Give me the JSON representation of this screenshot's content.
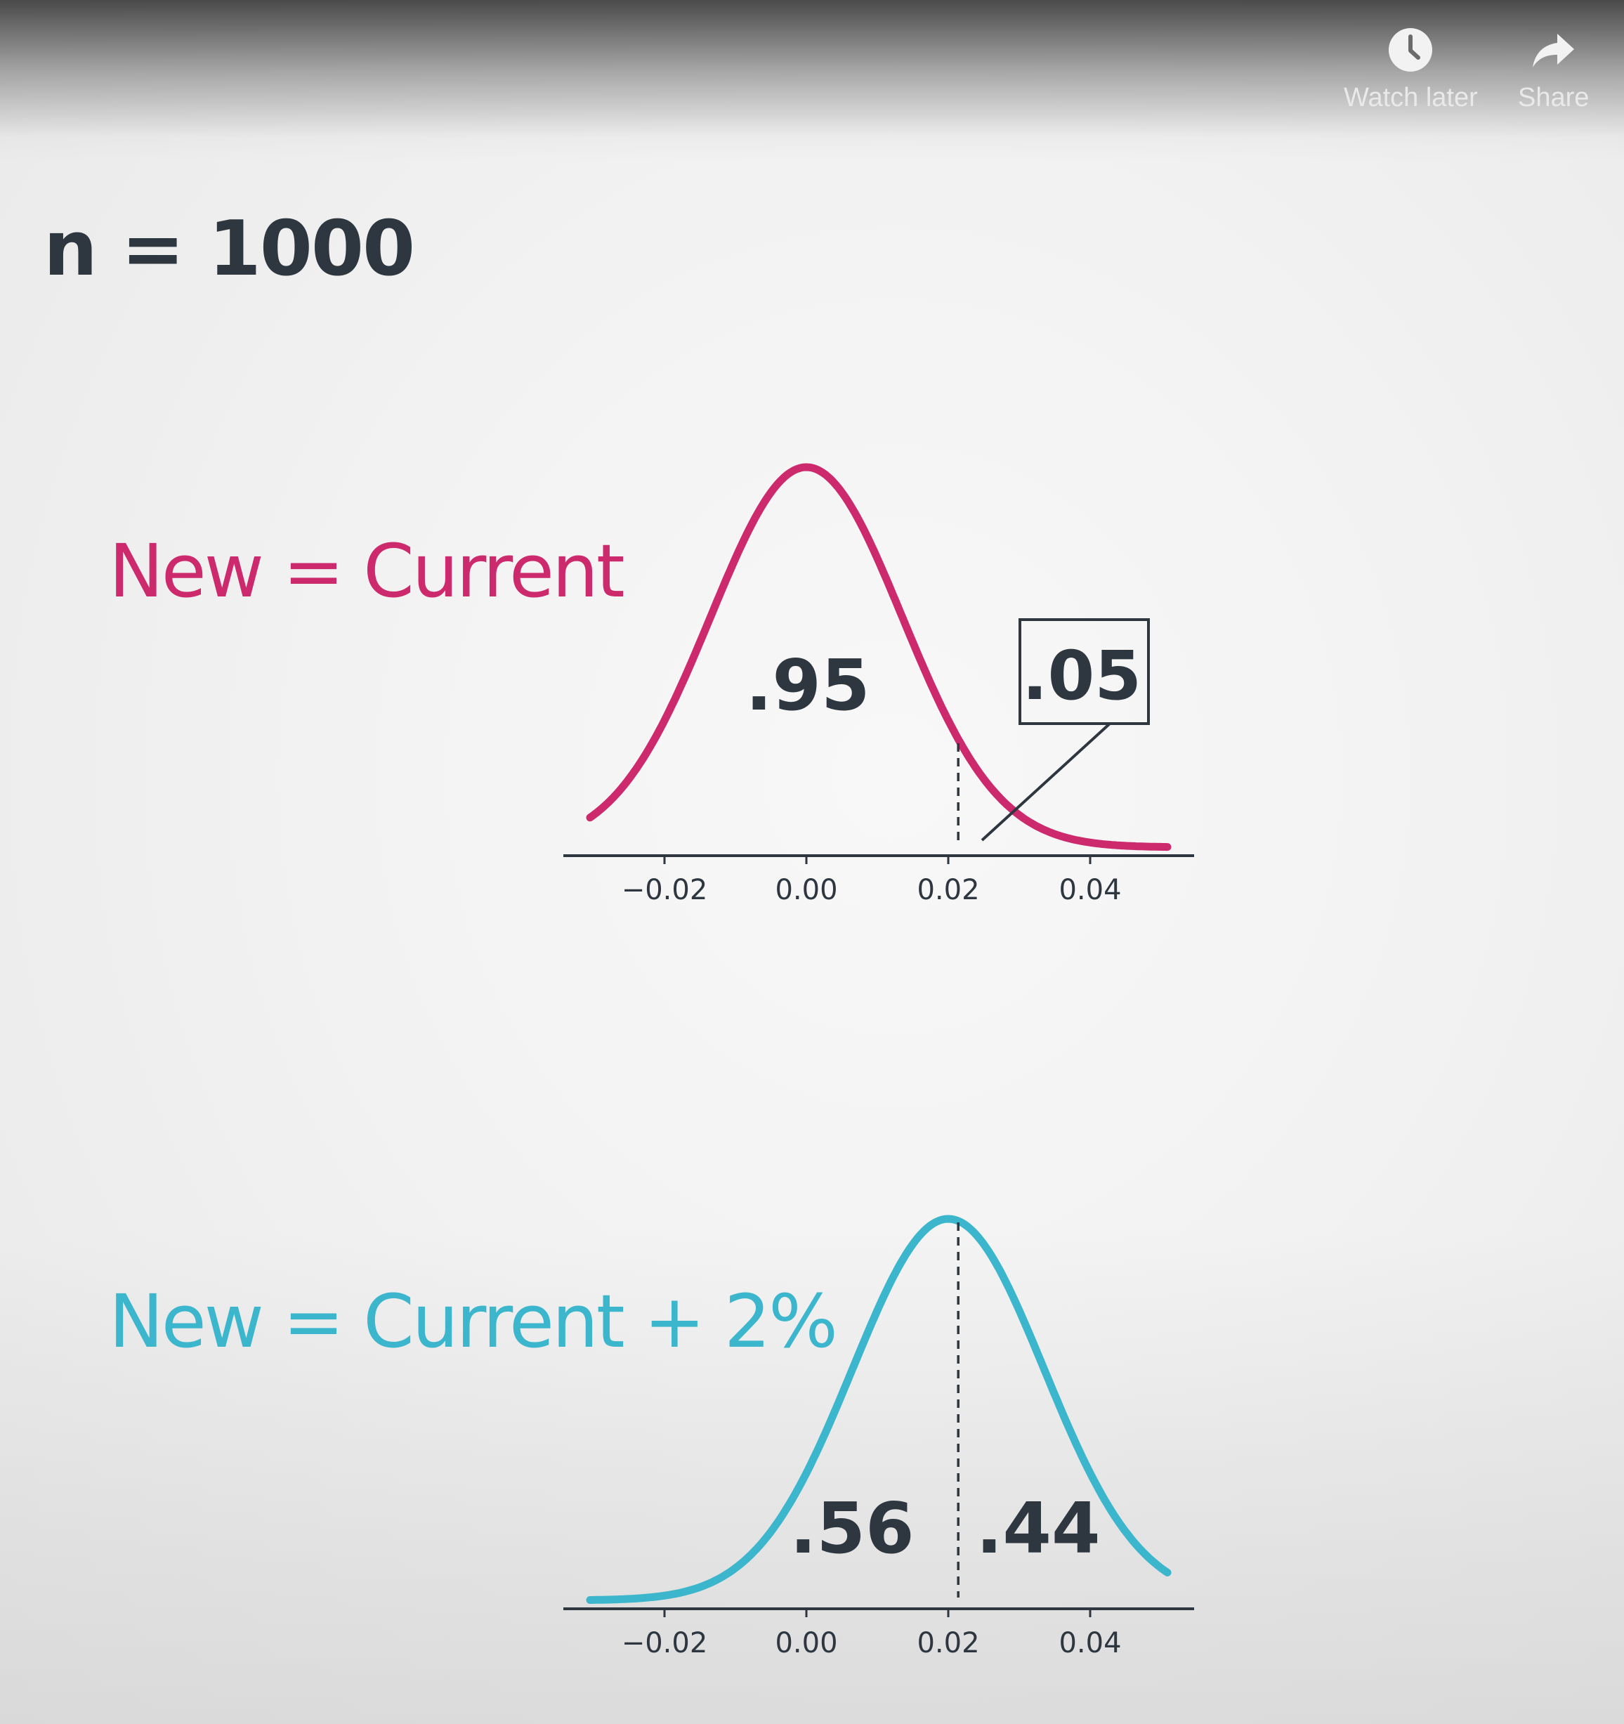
{
  "player": {
    "watch_later_label": "Watch later",
    "share_label": "Share",
    "watch_later_icon": "clock-icon",
    "share_icon": "share-arrow-icon"
  },
  "slide": {
    "sample_size": "n = 1000",
    "null_hypothesis_label": "New = Current",
    "alternative_hypothesis_label": "New = Current + 2%",
    "colors": {
      "null": "#cc2a6d",
      "alternative": "#3bb6cc",
      "text": "#2e3640"
    }
  },
  "chart_data": [
    {
      "type": "line",
      "name": "null-distribution",
      "x_ticks": [
        "−0.02",
        "0.00",
        "0.02",
        "0.04"
      ],
      "x_tick_values": [
        -0.02,
        0.0,
        0.02,
        0.04
      ],
      "xlim": [
        -0.03,
        0.05
      ],
      "mean": 0.0,
      "sd": 0.0135,
      "critical_value": 0.022,
      "areas": [
        {
          "label": ".95",
          "region": "left-of-critical"
        },
        {
          "label": ".05",
          "region": "right-of-critical",
          "boxed": true
        }
      ]
    },
    {
      "type": "line",
      "name": "alternative-distribution",
      "x_ticks": [
        "−0.02",
        "0.00",
        "0.02",
        "0.04"
      ],
      "x_tick_values": [
        -0.02,
        0.0,
        0.02,
        0.04
      ],
      "xlim": [
        -0.03,
        0.05
      ],
      "mean": 0.02,
      "sd": 0.0135,
      "critical_value": 0.022,
      "areas": [
        {
          "label": ".56",
          "region": "left-of-critical"
        },
        {
          "label": ".44",
          "region": "right-of-critical"
        }
      ]
    }
  ]
}
